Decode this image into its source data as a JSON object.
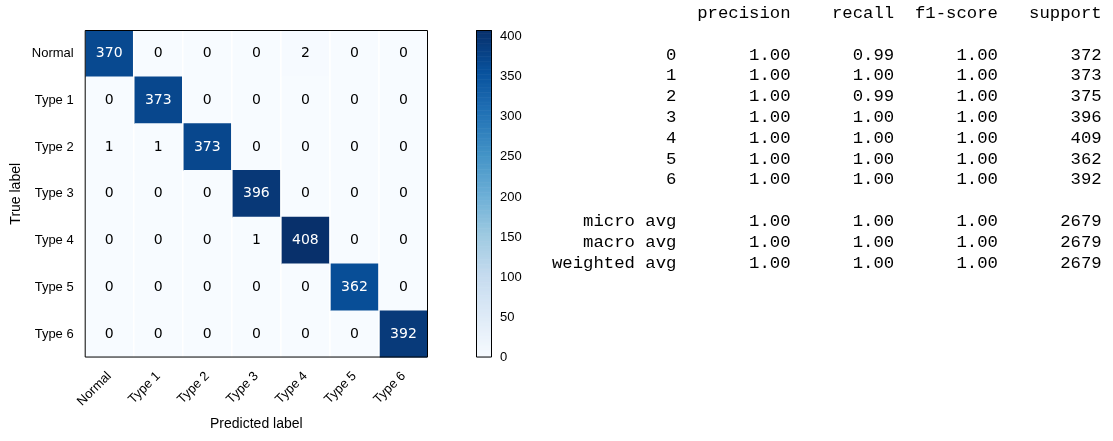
{
  "chart_data": [
    {
      "type": "heatmap",
      "xlabel": "Predicted label",
      "ylabel": "True label",
      "categories": [
        "Normal",
        "Type 1",
        "Type 2",
        "Type 3",
        "Type 4",
        "Type 5",
        "Type 6"
      ],
      "y_categories": [
        "Normal",
        "Type 1",
        "Type 2",
        "Type 3",
        "Type 4",
        "Type 5",
        "Type 6"
      ],
      "cells": [
        [
          370,
          0,
          0,
          0,
          2,
          0,
          0
        ],
        [
          0,
          373,
          0,
          0,
          0,
          0,
          0
        ],
        [
          1,
          1,
          373,
          0,
          0,
          0,
          0
        ],
        [
          0,
          0,
          0,
          396,
          0,
          0,
          0
        ],
        [
          0,
          0,
          0,
          1,
          408,
          0,
          0
        ],
        [
          0,
          0,
          0,
          0,
          0,
          362,
          0
        ],
        [
          0,
          0,
          0,
          0,
          0,
          0,
          392
        ]
      ],
      "clim": [
        0,
        408
      ],
      "cticks": [
        0,
        50,
        100,
        150,
        200,
        250,
        300,
        350,
        400
      ],
      "data_labels": true
    },
    {
      "type": "other",
      "annotations": [
        "              precision    recall  f1-score   support",
        "           0       1.00      0.99      1.00       372",
        "           1       1.00      1.00      1.00       373",
        "           2       1.00      0.99      1.00       375",
        "           3       1.00      1.00      1.00       396",
        "           4       1.00      1.00      1.00       409",
        "           5       1.00      1.00      1.00       362",
        "           6       1.00      1.00      1.00       392",
        "   micro avg       1.00      1.00      1.00      2679",
        "   macro avg       1.00      1.00      1.00      2679",
        "weighted avg       1.00      1.00      1.00      2679"
      ]
    }
  ]
}
